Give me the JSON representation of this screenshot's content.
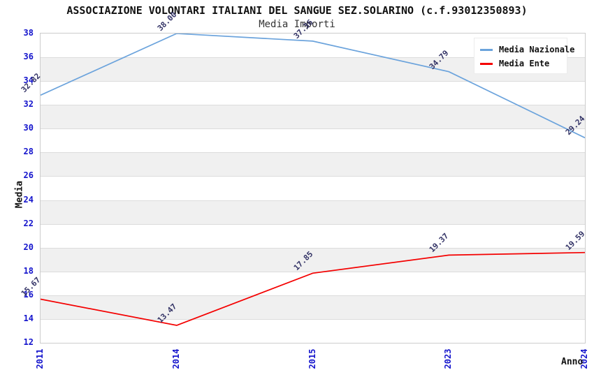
{
  "chart_data": {
    "type": "line",
    "title": "ASSOCIAZIONE VOLONTARI ITALIANI DEL SANGUE SEZ.SOLARINO (c.f.93012350893)",
    "subtitle": "Media Importi",
    "xlabel": "Anno",
    "ylabel": "Media",
    "categories": [
      "2011",
      "2014",
      "2015",
      "2023",
      "2024"
    ],
    "series": [
      {
        "name": "Media Nazionale",
        "color": "#6ba3dc",
        "values": [
          32.82,
          38.0,
          37.36,
          34.79,
          29.24
        ]
      },
      {
        "name": "Media Ente",
        "color": "#f40000",
        "values": [
          15.67,
          13.47,
          17.85,
          19.37,
          19.59
        ]
      }
    ],
    "ylim": [
      12,
      38
    ],
    "yticks": [
      38,
      36,
      34,
      32,
      30,
      28,
      26,
      24,
      22,
      20,
      18,
      16,
      14,
      12
    ],
    "grid": "horizontal-bands-alternating",
    "legend_position": "top-right",
    "colors": {
      "band": "#f0f0f0",
      "gridline": "#dcdcdc",
      "tick_label": "#1414cc",
      "value_label": "#333366",
      "plot_border": "#cccccc"
    }
  }
}
